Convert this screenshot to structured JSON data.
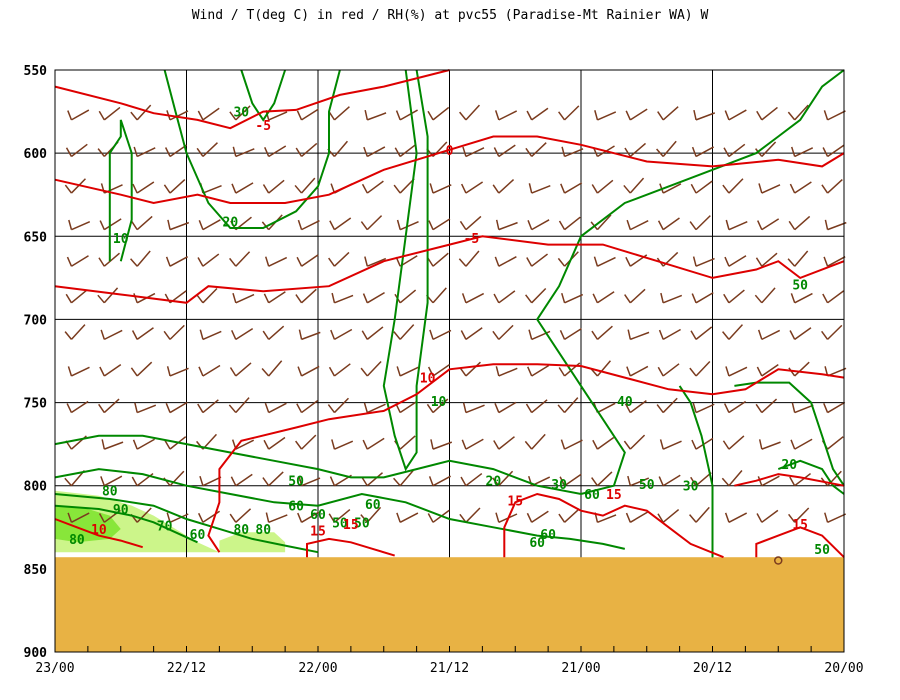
{
  "title": "Wind / T(deg C) in red / RH(%) at pvc55 (Paradise-Mt Rainier WA)  W",
  "chart_data": {
    "type": "contour",
    "title": "Wind / T(deg C) in red / RH(%) at pvc55 (Paradise-Mt Rainier WA)  W",
    "y_axis": {
      "label": "",
      "reversed": true,
      "range": [
        550,
        900
      ],
      "ticks": [
        "550",
        "600",
        "650",
        "700",
        "750",
        "800",
        "850",
        "900"
      ]
    },
    "x_axis": {
      "label": "",
      "reversed": true,
      "range_hours": [
        0,
        72
      ],
      "ticks": [
        "23/00",
        "22/12",
        "22/00",
        "21/12",
        "21/00",
        "20/12",
        "20/00"
      ]
    },
    "grid": true,
    "terrain_top_level": 843,
    "colors": {
      "temperature": "#dd0000",
      "rh": "#008800",
      "wind": "#7a3b1e",
      "terrain": "#e8b244",
      "rh_80": "#ccf58a",
      "rh_90": "#88e63a"
    },
    "temperature_contours": [
      {
        "label": "-5",
        "points": [
          [
            0,
            560
          ],
          [
            6,
            570
          ],
          [
            9,
            576
          ],
          [
            13,
            580
          ],
          [
            16,
            585
          ],
          [
            19,
            575
          ],
          [
            22,
            574
          ],
          [
            26,
            565
          ],
          [
            30,
            560
          ],
          [
            36,
            550
          ]
        ]
      },
      {
        "label": "0",
        "points": [
          [
            0,
            616
          ],
          [
            6,
            625
          ],
          [
            9,
            630
          ],
          [
            13,
            625
          ],
          [
            16,
            630
          ],
          [
            21,
            630
          ],
          [
            25,
            625
          ],
          [
            30,
            610
          ],
          [
            36,
            598
          ],
          [
            40,
            590
          ],
          [
            44,
            590
          ],
          [
            48,
            595
          ],
          [
            54,
            605
          ],
          [
            60,
            608
          ],
          [
            66,
            604
          ],
          [
            70,
            608
          ],
          [
            72,
            600
          ]
        ]
      },
      {
        "label": "-5",
        "points": [
          [
            0,
            680
          ],
          [
            6,
            685
          ],
          [
            12,
            690
          ],
          [
            14,
            680
          ],
          [
            19,
            683
          ],
          [
            25,
            680
          ],
          [
            30,
            665
          ],
          [
            36,
            655
          ],
          [
            39,
            650
          ],
          [
            45,
            655
          ],
          [
            50,
            655
          ],
          [
            55,
            665
          ],
          [
            60,
            675
          ],
          [
            64,
            670
          ],
          [
            66,
            665
          ],
          [
            68,
            675
          ],
          [
            72,
            665
          ]
        ]
      },
      {
        "label": "10",
        "points": [
          [
            15,
            840
          ],
          [
            14,
            830
          ],
          [
            15,
            810
          ],
          [
            15,
            790
          ],
          [
            17,
            773
          ],
          [
            22,
            765
          ],
          [
            25,
            760
          ],
          [
            30,
            755
          ],
          [
            33,
            745
          ],
          [
            36,
            730
          ],
          [
            40,
            727
          ],
          [
            44,
            727
          ],
          [
            48,
            728
          ],
          [
            52,
            735
          ],
          [
            56,
            742
          ],
          [
            60,
            745
          ],
          [
            63,
            742
          ],
          [
            66,
            730
          ],
          [
            70,
            733
          ],
          [
            72,
            735
          ]
        ]
      },
      {
        "label": "10",
        "points": [
          [
            0,
            820
          ],
          [
            2,
            825
          ],
          [
            4,
            830
          ],
          [
            6,
            833
          ],
          [
            8,
            837
          ]
        ]
      },
      {
        "label": "15",
        "points": [
          [
            23,
            843
          ],
          [
            23,
            835
          ],
          [
            25,
            832
          ],
          [
            27,
            834
          ],
          [
            29,
            838
          ],
          [
            31,
            842
          ]
        ]
      },
      {
        "label": "15",
        "points": [
          [
            41,
            843
          ],
          [
            41,
            825
          ],
          [
            42,
            810
          ],
          [
            44,
            805
          ],
          [
            46,
            808
          ],
          [
            48,
            815
          ],
          [
            50,
            818
          ],
          [
            52,
            812
          ],
          [
            54,
            815
          ],
          [
            56,
            825
          ],
          [
            58,
            835
          ],
          [
            61,
            843
          ]
        ]
      },
      {
        "label": "15",
        "points": [
          [
            64,
            843
          ],
          [
            64,
            835
          ],
          [
            66,
            830
          ],
          [
            68,
            825
          ],
          [
            70,
            830
          ],
          [
            72,
            843
          ]
        ]
      },
      {
        "label": "",
        "points": [
          [
            62,
            800
          ],
          [
            64,
            797
          ],
          [
            66,
            793
          ],
          [
            68,
            795
          ],
          [
            72,
            800
          ]
        ]
      }
    ],
    "rh_contours": [
      {
        "label": "10",
        "points": [
          [
            5,
            665
          ],
          [
            5,
            640
          ],
          [
            5,
            600
          ],
          [
            6,
            590
          ],
          [
            6,
            580
          ],
          [
            7,
            600
          ],
          [
            7,
            640
          ],
          [
            6,
            665
          ]
        ]
      },
      {
        "label": "20",
        "points": [
          [
            10,
            550
          ],
          [
            11,
            575
          ],
          [
            12,
            600
          ],
          [
            14,
            630
          ],
          [
            16,
            645
          ],
          [
            19,
            645
          ],
          [
            22,
            635
          ],
          [
            24,
            620
          ],
          [
            25,
            600
          ],
          [
            25,
            575
          ],
          [
            26,
            550
          ]
        ]
      },
      {
        "label": "30",
        "points": [
          [
            17,
            550
          ],
          [
            18,
            570
          ],
          [
            19,
            580
          ],
          [
            20,
            570
          ],
          [
            21,
            550
          ]
        ]
      },
      {
        "label": "40",
        "points": [
          [
            32,
            550
          ],
          [
            33,
            600
          ],
          [
            32,
            650
          ],
          [
            31,
            700
          ],
          [
            30,
            740
          ],
          [
            31,
            770
          ],
          [
            32,
            790
          ],
          [
            33,
            780
          ],
          [
            33,
            740
          ],
          [
            34,
            690
          ],
          [
            34,
            640
          ],
          [
            34,
            590
          ],
          [
            33,
            550
          ]
        ]
      },
      {
        "label": "50",
        "points": [
          [
            0,
            775
          ],
          [
            4,
            770
          ],
          [
            8,
            770
          ],
          [
            12,
            775
          ],
          [
            16,
            780
          ],
          [
            20,
            785
          ],
          [
            24,
            790
          ],
          [
            27,
            795
          ],
          [
            30,
            795
          ],
          [
            33,
            790
          ],
          [
            36,
            785
          ],
          [
            40,
            790
          ],
          [
            44,
            800
          ],
          [
            48,
            805
          ],
          [
            51,
            800
          ],
          [
            52,
            780
          ],
          [
            50,
            760
          ],
          [
            48,
            740
          ],
          [
            46,
            720
          ],
          [
            44,
            700
          ],
          [
            46,
            680
          ],
          [
            48,
            650
          ],
          [
            52,
            630
          ],
          [
            56,
            620
          ],
          [
            60,
            610
          ],
          [
            64,
            600
          ],
          [
            66,
            590
          ],
          [
            68,
            580
          ],
          [
            70,
            560
          ],
          [
            72,
            550
          ]
        ]
      },
      {
        "label": "60",
        "points": [
          [
            0,
            795
          ],
          [
            4,
            790
          ],
          [
            8,
            793
          ],
          [
            12,
            800
          ],
          [
            16,
            805
          ],
          [
            20,
            810
          ],
          [
            24,
            812
          ],
          [
            28,
            805
          ],
          [
            32,
            810
          ],
          [
            36,
            820
          ],
          [
            40,
            825
          ],
          [
            44,
            830
          ],
          [
            47,
            832
          ],
          [
            50,
            835
          ],
          [
            52,
            838
          ]
        ]
      },
      {
        "label": "50",
        "points": [
          [
            62,
            740
          ],
          [
            64,
            738
          ],
          [
            67,
            738
          ],
          [
            69,
            750
          ],
          [
            70,
            770
          ],
          [
            71,
            790
          ],
          [
            72,
            800
          ]
        ]
      },
      {
        "label": "20",
        "points": [
          [
            66,
            790
          ],
          [
            68,
            785
          ],
          [
            70,
            790
          ],
          [
            71,
            800
          ],
          [
            72,
            805
          ]
        ]
      },
      {
        "label": "70",
        "points": [
          [
            0,
            805
          ],
          [
            5,
            808
          ],
          [
            9,
            812
          ],
          [
            12,
            820
          ],
          [
            15,
            826
          ],
          [
            18,
            832
          ],
          [
            21,
            836
          ],
          [
            24,
            840
          ]
        ]
      },
      {
        "label": "80",
        "points": [
          [
            0,
            812
          ],
          [
            4,
            814
          ],
          [
            7,
            818
          ],
          [
            9,
            822
          ],
          [
            11,
            828
          ],
          [
            13,
            834
          ]
        ]
      },
      {
        "label": "30",
        "points": [
          [
            60,
            843
          ],
          [
            60,
            800
          ],
          [
            59,
            770
          ],
          [
            58,
            750
          ],
          [
            57,
            740
          ]
        ]
      }
    ],
    "rh_labels": [
      {
        "text": "30",
        "x": 17,
        "y": 578
      },
      {
        "text": "10",
        "x": 6,
        "y": 654
      },
      {
        "text": "20",
        "x": 16,
        "y": 644
      },
      {
        "text": "50",
        "x": 68,
        "y": 682
      },
      {
        "text": "10",
        "x": 35,
        "y": 752
      },
      {
        "text": "40",
        "x": 52,
        "y": 752
      },
      {
        "text": "50",
        "x": 22,
        "y": 800
      },
      {
        "text": "20",
        "x": 40,
        "y": 800
      },
      {
        "text": "30",
        "x": 46,
        "y": 802
      },
      {
        "text": "50",
        "x": 54,
        "y": 802
      },
      {
        "text": "30",
        "x": 58,
        "y": 803
      },
      {
        "text": "20",
        "x": 67,
        "y": 790
      },
      {
        "text": "60",
        "x": 22,
        "y": 815
      },
      {
        "text": "60",
        "x": 29,
        "y": 814
      },
      {
        "text": "60",
        "x": 49,
        "y": 808
      },
      {
        "text": "60",
        "x": 24,
        "y": 820
      },
      {
        "text": "50",
        "x": 26,
        "y": 825
      },
      {
        "text": "50",
        "x": 28,
        "y": 825
      },
      {
        "text": "60",
        "x": 45,
        "y": 832
      },
      {
        "text": "60",
        "x": 44,
        "y": 837
      },
      {
        "text": "80",
        "x": 5,
        "y": 806
      },
      {
        "text": "90",
        "x": 6,
        "y": 817
      },
      {
        "text": "70",
        "x": 10,
        "y": 827
      },
      {
        "text": "60",
        "x": 13,
        "y": 832
      },
      {
        "text": "80",
        "x": 17,
        "y": 829
      },
      {
        "text": "80",
        "x": 19,
        "y": 829
      },
      {
        "text": "80",
        "x": 2,
        "y": 835
      },
      {
        "text": "50",
        "x": 70,
        "y": 841
      }
    ],
    "temperature_labels": [
      {
        "text": "-5",
        "x": 19,
        "y": 586
      },
      {
        "text": "0",
        "x": 36,
        "y": 601
      },
      {
        "text": "-5",
        "x": 38,
        "y": 654
      },
      {
        "text": "10",
        "x": 34,
        "y": 738
      },
      {
        "text": "10",
        "x": 4,
        "y": 829
      },
      {
        "text": "15",
        "x": 24,
        "y": 830
      },
      {
        "text": "15",
        "x": 27,
        "y": 826
      },
      {
        "text": "15",
        "x": 42,
        "y": 812
      },
      {
        "text": "15",
        "x": 51,
        "y": 808
      },
      {
        "text": "15",
        "x": 68,
        "y": 826
      }
    ],
    "wind_barbs": [
      {
        "x": 66,
        "y": 849,
        "speed": 0,
        "dir": 0
      }
    ]
  }
}
